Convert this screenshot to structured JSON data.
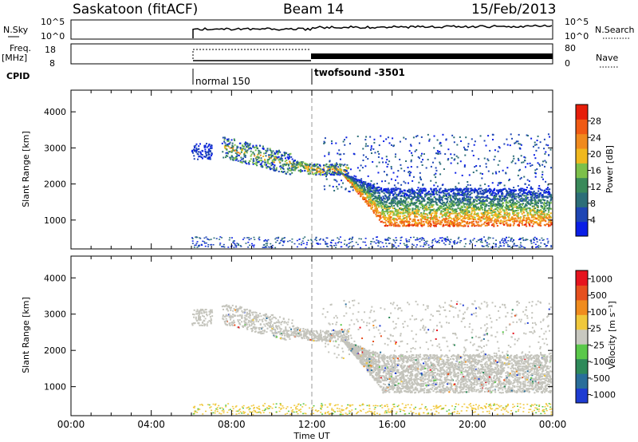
{
  "header": {
    "station": "Saskatoon (fitACF)",
    "beam": "Beam 14",
    "date": "15/Feb/2013"
  },
  "panels": {
    "nsky": {
      "label": "N.Sky",
      "ticks": [
        "10^5",
        "10^0"
      ],
      "right_label": "N.Search",
      "right_ticks": [
        "10^5",
        "10^0"
      ]
    },
    "freq": {
      "label_top": "Freq.",
      "label_unit": "[MHz]",
      "ticks": [
        "18",
        "8"
      ],
      "right_label": "Nave",
      "right_ticks": [
        "80",
        "0"
      ]
    },
    "cpid": {
      "label": "CPID",
      "segments": [
        {
          "name": "normal 150",
          "start_hour": 6
        },
        {
          "name": "twofsound -3501",
          "start_hour": 12
        }
      ]
    }
  },
  "colors": {
    "power": [
      "#0a1ee6",
      "#1e46b4",
      "#2c6e78",
      "#3a8a5a",
      "#7cc04a",
      "#f0b81e",
      "#f08a1e",
      "#f05a14",
      "#e61e0a"
    ],
    "velocity": [
      "#1e3cd2",
      "#2a6e9a",
      "#2e8a5a",
      "#5ac84a",
      "#c8c8c0",
      "#f0c83c",
      "#f08c1e",
      "#e6501e",
      "#e6141e"
    ]
  },
  "chart_data": [
    {
      "type": "heatmap",
      "ylabel": "Slant Range [km]",
      "y_ticks": [
        "1000",
        "2000",
        "3000",
        "4000"
      ],
      "ylim": [
        200,
        4600
      ],
      "x_ticks": [
        "00:00",
        "04:00",
        "08:00",
        "12:00",
        "16:00",
        "20:00",
        "00:00"
      ],
      "xlim": [
        0,
        24
      ],
      "colorbar_label": "Power [dB]",
      "colorbar_ticks": [
        "4",
        "8",
        "12",
        "16",
        "20",
        "24",
        "28"
      ],
      "scatter_bands": [
        {
          "x": [
            6.0,
            7.0
          ],
          "y": [
            2700,
            3200
          ],
          "level": "low"
        },
        {
          "x": [
            7.5,
            12.0
          ],
          "y": [
            2300,
            3300
          ],
          "level": "mid"
        },
        {
          "x": [
            12.0,
            13.8
          ],
          "y": [
            2300,
            2600
          ],
          "level": "mid"
        },
        {
          "x": [
            13.8,
            24.0
          ],
          "y": [
            700,
            2000
          ],
          "level": "high"
        }
      ]
    },
    {
      "type": "heatmap",
      "ylabel": "Slant Range [km]",
      "y_ticks": [
        "1000",
        "2000",
        "3000",
        "4000"
      ],
      "ylim": [
        200,
        4600
      ],
      "x_ticks": [
        "00:00",
        "04:00",
        "08:00",
        "12:00",
        "16:00",
        "20:00",
        "00:00"
      ],
      "xlim": [
        0,
        24
      ],
      "xlabel": "Time UT",
      "colorbar_label": "Velocity [m s⁻¹]",
      "colorbar_ticks": [
        "1000",
        "500",
        "100",
        "25",
        "-25",
        "-100",
        "-500",
        "-1000"
      ]
    }
  ]
}
